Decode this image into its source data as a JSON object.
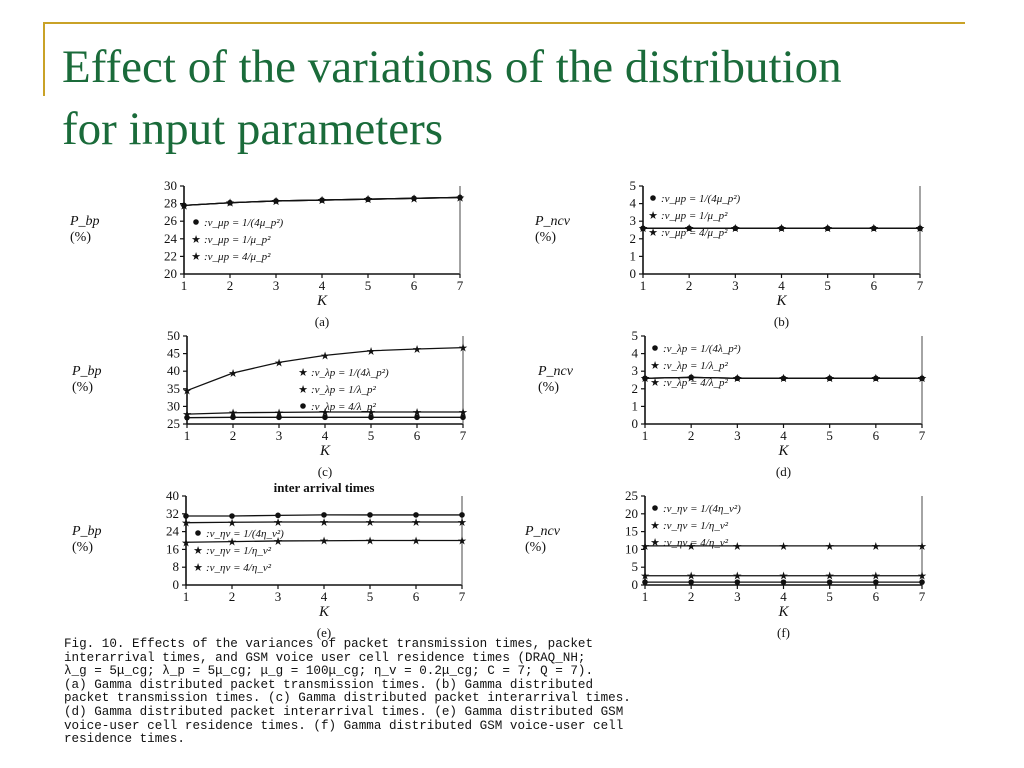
{
  "slide": {
    "title_line1": "Effect of the variations of the distribution",
    "title_line2": "for input parameters",
    "colors": {
      "title": "#1a6b3a",
      "accent_rule": "#c9a227"
    }
  },
  "caption": {
    "lines": [
      "Fig. 10.  Effects of the variances of packet transmission times, packet",
      "interarrival times, and GSM voice user cell residence times (DRAQ_NH;",
      "λ_g = 5μ_cg; λ_p = 5μ_cg; μ_g = 100μ_cg; η_v = 0.2μ_cg; C = 7; Q = 7).",
      "(a) Gamma distributed packet transmission times. (b) Gamma distributed",
      "packet transmission times. (c) Gamma distributed packet interarrival times.",
      "(d) Gamma distributed packet interarrival times. (e) Gamma distributed GSM",
      "voice-user cell residence times. (f) Gamma distributed GSM voice-user cell",
      "residence times."
    ]
  },
  "chart_data": [
    {
      "panel": "(a)",
      "type": "line",
      "xlabel": "K",
      "ylabel": "P_bp (%)",
      "x": [
        1,
        2,
        3,
        4,
        5,
        6,
        7
      ],
      "xlim": [
        1,
        7
      ],
      "ylim": [
        20,
        30
      ],
      "yticks": [
        20,
        22,
        24,
        26,
        28,
        30
      ],
      "xticks": [
        1,
        2,
        3,
        4,
        5,
        6,
        7
      ],
      "legend_position": "bottom-left",
      "series": [
        {
          "name": ":v_μp = 1/(4μ_p²)",
          "marker": "dot",
          "values": [
            27.8,
            28.1,
            28.3,
            28.4,
            28.5,
            28.6,
            28.7
          ]
        },
        {
          "name": ":v_μp = 1/μ_p²",
          "marker": "star",
          "values": [
            27.8,
            28.1,
            28.3,
            28.4,
            28.5,
            28.6,
            28.7
          ]
        },
        {
          "name": ":v_μp = 4/μ_p²",
          "marker": "star",
          "values": [
            27.8,
            28.1,
            28.3,
            28.4,
            28.5,
            28.6,
            28.7
          ]
        }
      ]
    },
    {
      "panel": "(b)",
      "type": "line",
      "xlabel": "K",
      "ylabel": "P_ncv (%)",
      "x": [
        1,
        2,
        3,
        4,
        5,
        6,
        7
      ],
      "xlim": [
        1,
        7
      ],
      "ylim": [
        0,
        5
      ],
      "yticks": [
        0,
        1,
        2,
        3,
        4,
        5
      ],
      "xticks": [
        1,
        2,
        3,
        4,
        5,
        6,
        7
      ],
      "legend_position": "top-left",
      "series": [
        {
          "name": ":v_μp = 1/(4μ_p²)",
          "marker": "dot",
          "values": [
            2.6,
            2.6,
            2.6,
            2.6,
            2.6,
            2.6,
            2.6
          ]
        },
        {
          "name": ":v_μp = 1/μ_p²",
          "marker": "star",
          "values": [
            2.6,
            2.6,
            2.6,
            2.6,
            2.6,
            2.6,
            2.6
          ]
        },
        {
          "name": ":v_μp = 4/μ_p²",
          "marker": "star",
          "values": [
            2.6,
            2.6,
            2.6,
            2.6,
            2.6,
            2.6,
            2.6
          ]
        }
      ]
    },
    {
      "panel": "(c)",
      "type": "line",
      "xlabel": "K",
      "ylabel": "P_bp (%)",
      "x": [
        1,
        2,
        3,
        4,
        5,
        6,
        7
      ],
      "xlim": [
        1,
        7
      ],
      "ylim": [
        25,
        50
      ],
      "yticks": [
        25,
        30,
        35,
        40,
        45,
        50
      ],
      "xticks": [
        1,
        2,
        3,
        4,
        5,
        6,
        7
      ],
      "legend_position": "right",
      "series": [
        {
          "name": ":v_λp = 1/(4λ_p²)",
          "marker": "star",
          "values": [
            34.5,
            39.5,
            42.5,
            44.5,
            45.8,
            46.3,
            46.7
          ]
        },
        {
          "name": ":v_λp = 1/λ_p²",
          "marker": "star",
          "values": [
            27.8,
            28.2,
            28.3,
            28.4,
            28.4,
            28.4,
            28.4
          ]
        },
        {
          "name": ":v_λp = 4/λ_p²",
          "marker": "dot",
          "values": [
            26.8,
            26.9,
            26.9,
            26.9,
            26.9,
            26.9,
            26.9
          ]
        }
      ]
    },
    {
      "panel": "(d)",
      "type": "line",
      "xlabel": "K",
      "ylabel": "P_ncv (%)",
      "x": [
        1,
        2,
        3,
        4,
        5,
        6,
        7
      ],
      "xlim": [
        1,
        7
      ],
      "ylim": [
        0,
        5
      ],
      "yticks": [
        0,
        1,
        2,
        3,
        4,
        5
      ],
      "xticks": [
        1,
        2,
        3,
        4,
        5,
        6,
        7
      ],
      "legend_position": "top-left",
      "series": [
        {
          "name": ":v_λp = 1/(4λ_p²)",
          "marker": "dot",
          "values": [
            2.6,
            2.65,
            2.6,
            2.6,
            2.6,
            2.6,
            2.6
          ]
        },
        {
          "name": ":v_λp = 1/λ_p²",
          "marker": "star",
          "values": [
            2.6,
            2.65,
            2.6,
            2.6,
            2.6,
            2.6,
            2.6
          ]
        },
        {
          "name": ":v_λp = 4/λ_p²",
          "marker": "star",
          "values": [
            2.6,
            2.65,
            2.6,
            2.6,
            2.6,
            2.6,
            2.6
          ]
        }
      ]
    },
    {
      "panel": "(e)",
      "type": "line",
      "xlabel": "K",
      "ylabel": "P_bp (%)",
      "title": "inter arrival times",
      "x": [
        1,
        2,
        3,
        4,
        5,
        6,
        7
      ],
      "xlim": [
        1,
        7
      ],
      "ylim": [
        0,
        40
      ],
      "yticks": [
        0,
        8,
        16,
        24,
        32,
        40
      ],
      "xticks": [
        1,
        2,
        3,
        4,
        5,
        6,
        7
      ],
      "legend_position": "bottom-left",
      "series": [
        {
          "name": ":v_ηv = 1/(4η_v²)",
          "marker": "dot",
          "values": [
            31,
            31,
            31.3,
            31.5,
            31.5,
            31.5,
            31.5
          ]
        },
        {
          "name": ":v_ηv = 1/η_v²",
          "marker": "star",
          "values": [
            28,
            28.2,
            28.3,
            28.3,
            28.3,
            28.3,
            28.3
          ]
        },
        {
          "name": ":v_ηv = 4/η_v²",
          "marker": "star",
          "values": [
            19.2,
            19.5,
            19.8,
            19.9,
            20,
            20,
            20
          ]
        }
      ]
    },
    {
      "panel": "(f)",
      "type": "line",
      "xlabel": "K",
      "ylabel": "P_ncv (%)",
      "x": [
        1,
        2,
        3,
        4,
        5,
        6,
        7
      ],
      "xlim": [
        1,
        7
      ],
      "ylim": [
        0,
        25
      ],
      "yticks": [
        0,
        5,
        10,
        15,
        20,
        25
      ],
      "xticks": [
        1,
        2,
        3,
        4,
        5,
        6,
        7
      ],
      "legend_position": "top-left",
      "series": [
        {
          "name": ":v_ηv = 1/(4η_v²)",
          "marker": "dot",
          "values": [
            0.8,
            0.8,
            0.8,
            0.8,
            0.8,
            0.8,
            0.8
          ]
        },
        {
          "name": ":v_ηv = 1/η_v²",
          "marker": "star",
          "values": [
            2.6,
            2.6,
            2.6,
            2.6,
            2.6,
            2.6,
            2.6
          ]
        },
        {
          "name": ":v_ηv = 4/η_v²",
          "marker": "star",
          "values": [
            11,
            11,
            11,
            11,
            11,
            11,
            11
          ]
        }
      ]
    }
  ]
}
